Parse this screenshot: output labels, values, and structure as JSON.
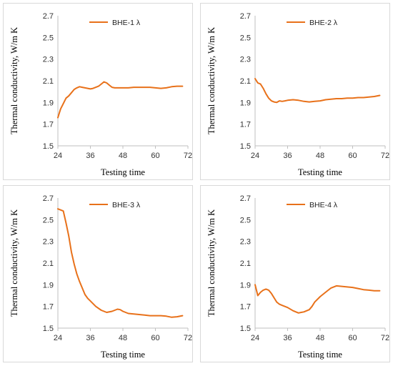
{
  "chart_data": [
    {
      "type": "line",
      "xlabel": "Testing time",
      "ylabel": "Thermal conductivity, W/m K",
      "xlim": [
        24,
        72
      ],
      "ylim": [
        1.5,
        2.7
      ],
      "xticks": [
        "24",
        "36",
        "48",
        "60",
        "72"
      ],
      "yticks": [
        "1.5",
        "1.7",
        "1.9",
        "2.1",
        "2.3",
        "2.5",
        "2.7"
      ],
      "legend_position": "top-center",
      "grid": false,
      "series": [
        {
          "name": "BHE-1 λ",
          "color": "#E8711A",
          "x": [
            24,
            24.5,
            25,
            26,
            27,
            28,
            29,
            30,
            31,
            32,
            33,
            34,
            35,
            36,
            37,
            38,
            39,
            40,
            41,
            42,
            43,
            44,
            45,
            46,
            48,
            50,
            52,
            54,
            56,
            58,
            60,
            62,
            64,
            66,
            68,
            70
          ],
          "y": [
            1.76,
            1.8,
            1.84,
            1.89,
            1.94,
            1.96,
            1.99,
            2.02,
            2.035,
            2.045,
            2.04,
            2.035,
            2.03,
            2.025,
            2.03,
            2.04,
            2.05,
            2.07,
            2.09,
            2.08,
            2.06,
            2.04,
            2.035,
            2.035,
            2.035,
            2.035,
            2.04,
            2.04,
            2.04,
            2.04,
            2.035,
            2.03,
            2.035,
            2.045,
            2.05,
            2.05
          ]
        }
      ]
    },
    {
      "type": "line",
      "xlabel": "Testing time",
      "ylabel": "Thermal conductivity, W/m K",
      "xlim": [
        24,
        72
      ],
      "ylim": [
        1.5,
        2.7
      ],
      "xticks": [
        "24",
        "36",
        "48",
        "60",
        "72"
      ],
      "yticks": [
        "1.5",
        "1.7",
        "1.9",
        "2.1",
        "2.3",
        "2.5",
        "2.7"
      ],
      "legend_position": "top-center",
      "grid": false,
      "series": [
        {
          "name": "BHE-2 λ",
          "color": "#E8711A",
          "x": [
            24,
            25,
            26,
            27,
            28,
            29,
            30,
            31,
            32,
            33,
            34,
            35,
            36,
            38,
            40,
            42,
            44,
            46,
            48,
            50,
            52,
            54,
            56,
            58,
            60,
            62,
            64,
            66,
            68,
            70
          ],
          "y": [
            2.12,
            2.08,
            2.07,
            2.03,
            1.98,
            1.94,
            1.915,
            1.905,
            1.9,
            1.915,
            1.91,
            1.915,
            1.92,
            1.925,
            1.92,
            1.91,
            1.905,
            1.91,
            1.915,
            1.925,
            1.93,
            1.935,
            1.935,
            1.94,
            1.94,
            1.945,
            1.945,
            1.95,
            1.955,
            1.965
          ]
        }
      ]
    },
    {
      "type": "line",
      "xlabel": "Testing time",
      "ylabel": "Thermal conductivity, W/m K",
      "xlim": [
        24,
        72
      ],
      "ylim": [
        1.5,
        2.7
      ],
      "xticks": [
        "24",
        "36",
        "48",
        "60",
        "72"
      ],
      "yticks": [
        "1.5",
        "1.7",
        "1.9",
        "2.1",
        "2.3",
        "2.5",
        "2.7"
      ],
      "legend_position": "top-center",
      "grid": false,
      "series": [
        {
          "name": "BHE-3 λ",
          "color": "#E8711A",
          "x": [
            24,
            25,
            26,
            27,
            28,
            29,
            30,
            31,
            32,
            33,
            34,
            35,
            36,
            38,
            40,
            42,
            44,
            46,
            47,
            48,
            50,
            52,
            54,
            56,
            58,
            60,
            62,
            64,
            66,
            68,
            70
          ],
          "y": [
            2.6,
            2.59,
            2.58,
            2.47,
            2.35,
            2.2,
            2.09,
            2.0,
            1.93,
            1.87,
            1.81,
            1.775,
            1.75,
            1.7,
            1.665,
            1.645,
            1.655,
            1.675,
            1.67,
            1.655,
            1.635,
            1.63,
            1.625,
            1.62,
            1.615,
            1.615,
            1.615,
            1.61,
            1.6,
            1.605,
            1.615
          ]
        }
      ]
    },
    {
      "type": "line",
      "xlabel": "Testing time",
      "ylabel": "Thermal conductivity, W/m K",
      "xlim": [
        24,
        72
      ],
      "ylim": [
        1.5,
        2.7
      ],
      "xticks": [
        "24",
        "36",
        "48",
        "60",
        "72"
      ],
      "yticks": [
        "1.5",
        "1.7",
        "1.9",
        "2.1",
        "2.3",
        "2.5",
        "2.7"
      ],
      "legend_position": "top-center",
      "grid": false,
      "series": [
        {
          "name": "BHE-4 λ",
          "color": "#E8711A",
          "x": [
            24,
            25,
            26,
            27,
            28,
            29,
            30,
            31,
            32,
            33,
            34,
            36,
            38,
            40,
            41,
            42,
            44,
            45,
            46,
            48,
            50,
            52,
            54,
            56,
            58,
            60,
            62,
            64,
            66,
            68,
            70
          ],
          "y": [
            1.9,
            1.8,
            1.83,
            1.85,
            1.86,
            1.85,
            1.82,
            1.78,
            1.74,
            1.72,
            1.71,
            1.69,
            1.66,
            1.64,
            1.645,
            1.65,
            1.67,
            1.7,
            1.74,
            1.79,
            1.83,
            1.87,
            1.89,
            1.885,
            1.88,
            1.875,
            1.865,
            1.855,
            1.85,
            1.845,
            1.845
          ]
        }
      ]
    }
  ]
}
